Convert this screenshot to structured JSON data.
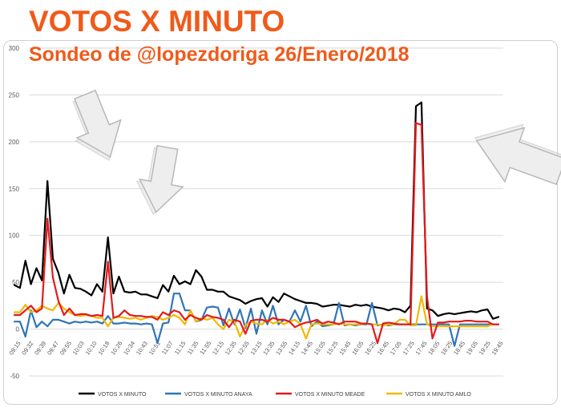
{
  "header": {
    "title": "VOTOS X MINUTO",
    "subtitle": "Sondeo de @lopezdoriga 26/Enero/2018"
  },
  "colors": {
    "title": "#f05a1a",
    "series": [
      "#000000",
      "#2e75b6",
      "#e31a1c",
      "#f2b800"
    ]
  },
  "chart_data": {
    "type": "line",
    "title": "",
    "xlabel": "",
    "ylabel": "",
    "ylim": [
      -50,
      300
    ],
    "yticks": [
      -50,
      0,
      50,
      100,
      150,
      200,
      250,
      300
    ],
    "grid": "horizontal",
    "legend_position": "bottom",
    "x_tick_labels": [
      "09:15",
      "09:32",
      "09:39",
      "09:47",
      "09:55",
      "10:03",
      "10:10",
      "10:18",
      "10:26",
      "10:34",
      "10:43",
      "10:51",
      "11:07",
      "11:15",
      "11:35",
      "11:55",
      "12:15",
      "12:35",
      "12:55",
      "13:15",
      "13:35",
      "13:55",
      "14:15",
      "14:45",
      "15:05",
      "15:25",
      "15:45",
      "16:05",
      "16:25",
      "16:45",
      "17:05",
      "17:25",
      "17:45",
      "18:05",
      "18:25",
      "18:45",
      "19:05",
      "19:25",
      "19:45"
    ],
    "series": [
      {
        "name": "VOTOS X MINUTO",
        "values": [
          47,
          44,
          73,
          48,
          65,
          52,
          158,
          75,
          60,
          38,
          58,
          44,
          43,
          40,
          36,
          48,
          40,
          98,
          38,
          56,
          40,
          39,
          40,
          37,
          37,
          35,
          33,
          47,
          40,
          57,
          48,
          51,
          48,
          63,
          56,
          42,
          42,
          40,
          40,
          35,
          33,
          31,
          27,
          30,
          32,
          33,
          24,
          34,
          29,
          38,
          35,
          32,
          30,
          28,
          28,
          27,
          24,
          25,
          26,
          26,
          25,
          24,
          26,
          25,
          26,
          24,
          23,
          22,
          20,
          22,
          21,
          18,
          25,
          238,
          242,
          22,
          20,
          14,
          16,
          17,
          16,
          17,
          18,
          19,
          18,
          20,
          21,
          11,
          13
        ]
      },
      {
        "name": "VOTOS X MINUTO ANAYA",
        "values": [
          8,
          8,
          -8,
          20,
          2,
          8,
          3,
          10,
          10,
          8,
          6,
          8,
          7,
          8,
          7,
          8,
          6,
          14,
          6,
          6,
          7,
          6,
          6,
          5,
          6,
          5,
          -15,
          6,
          7,
          38,
          38,
          20,
          20,
          8,
          10,
          23,
          24,
          23,
          4,
          22,
          5,
          21,
          1,
          22,
          -5,
          20,
          5,
          25,
          5,
          10,
          8,
          20,
          8,
          25,
          3,
          8,
          3,
          4,
          5,
          28,
          4,
          5,
          4,
          5,
          5,
          28,
          4,
          5,
          4,
          5,
          5,
          5,
          5,
          5,
          5,
          5,
          5,
          5,
          5,
          5,
          -18,
          5,
          5,
          5,
          5,
          5,
          5,
          5,
          5
        ]
      },
      {
        "name": "VOTOS X MINUTO MEADE",
        "values": [
          15,
          15,
          20,
          25,
          18,
          22,
          118,
          55,
          30,
          15,
          22,
          15,
          16,
          16,
          14,
          15,
          14,
          72,
          12,
          14,
          20,
          15,
          14,
          14,
          13,
          13,
          10,
          18,
          15,
          20,
          18,
          10,
          15,
          12,
          10,
          15,
          13,
          12,
          10,
          2,
          10,
          8,
          -5,
          9,
          10,
          10,
          8,
          12,
          10,
          10,
          8,
          2,
          5,
          7,
          8,
          10,
          6,
          8,
          7,
          5,
          8,
          8,
          8,
          6,
          6,
          5,
          -15,
          6,
          7,
          6,
          5,
          5,
          5,
          220,
          218,
          35,
          -10,
          7,
          7,
          8,
          8,
          8,
          9,
          9,
          8,
          8,
          8,
          5,
          5
        ]
      },
      {
        "name": "VOTOS X MINUTO AMLO",
        "values": [
          18,
          18,
          26,
          18,
          20,
          25,
          22,
          20,
          28,
          22,
          18,
          15,
          14,
          15,
          14,
          12,
          12,
          3,
          12,
          13,
          12,
          11,
          12,
          10,
          12,
          14,
          13,
          10,
          12,
          15,
          12,
          5,
          20,
          8,
          12,
          10,
          12,
          5,
          0,
          10,
          8,
          -8,
          4,
          8,
          6,
          5,
          10,
          6,
          8,
          5,
          8,
          10,
          5,
          -10,
          5,
          6,
          5,
          5,
          5,
          6,
          5,
          5,
          5,
          5,
          6,
          5,
          5,
          4,
          5,
          5,
          10,
          10,
          4,
          4,
          35,
          5,
          3,
          3,
          3,
          3,
          3,
          3,
          3,
          3,
          3,
          3,
          3,
          5,
          5
        ]
      }
    ]
  }
}
